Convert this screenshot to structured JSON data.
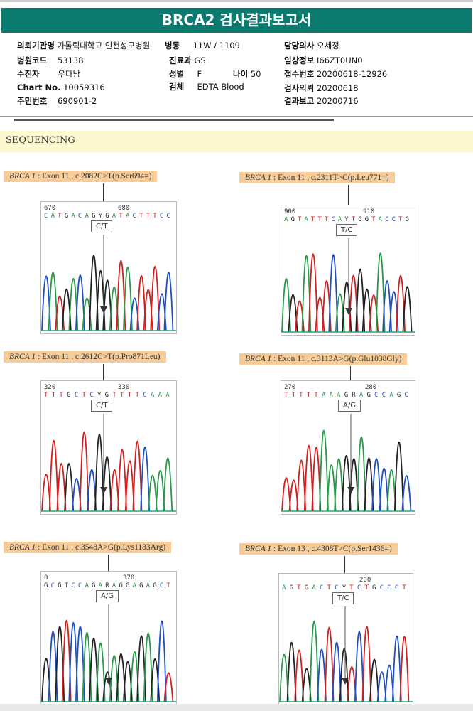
{
  "title": "BRCA2 검사결과보고서",
  "info": {
    "institution_label": "의뢰기관명",
    "institution": "가톨릭대학교 인천성모병원",
    "ward_label": "병동",
    "ward": "11W / 1109",
    "doctor_label": "담당의사",
    "doctor": "오세정",
    "hospital_code_label": "병원코드",
    "hospital_code": "53138",
    "dept_label": "진료과",
    "dept": "GS",
    "clinical_label": "임상정보",
    "clinical": "I66ZT0UN0",
    "patient_label": "수진자",
    "patient": "우다남",
    "sex_label": "성별",
    "sex": "F",
    "age_label": "나이",
    "age": "50",
    "receipt_label": "접수번호",
    "receipt": "20200618-12926",
    "chart_label": "Chart No.",
    "chart": "10059316",
    "specimen_label": "검체",
    "specimen": "EDTA Blood",
    "request_label": "검사의뢰",
    "request": "20200618",
    "id_label": "주민번호",
    "id": "690901-2",
    "report_label": "결과보고",
    "report": "20200716"
  },
  "section": "SEQUENCING",
  "panels": [
    {
      "gene": "BRCA 1",
      "desc": " : Exon 11 , c.2082C>T(p.Ser694=)",
      "pos1": "670",
      "pos2": "680",
      "seq": "CATGACAGYGATACTTTCC",
      "call": "C/T"
    },
    {
      "gene": "BRCA 1",
      "desc": " : Exon 11 , c.2311T>C(p.Leu771=)",
      "pos1": "900",
      "pos2": "910",
      "seq": "AGTATTTCAYTGGTACCTG",
      "call": "T/C"
    },
    {
      "gene": "BRCA 1",
      "desc": " : Exon 11 , c.2612C>T(p.Pro871Leu)",
      "pos1": "320",
      "pos2": "330",
      "seq": "TTTGCTCYGTTTTCAAA",
      "call": "C/T"
    },
    {
      "gene": "BRCA 1",
      "desc": " : Exon 11 , c.3113A>G(p.Glu1038Gly)",
      "pos1": "270",
      "pos2": "280",
      "seq": "TTTTTAAAGRAGCCAGC",
      "call": "A/G"
    },
    {
      "gene": "BRCA 1",
      "desc": " : Exon 11 , c.3548A>G(p.Lys1183Arg)",
      "pos1": "0",
      "pos2": "370",
      "seq": "GCGTCCAGARAGGAGAGCT",
      "call": "A/G"
    },
    {
      "gene": "BRCA 1",
      "desc": " : Exon 13 , c.4308T>C(p.Ser1436=)",
      "pos1": "",
      "pos2": "200",
      "seq": "AGTGACTCYTCTGCCCT",
      "call": "T/C"
    }
  ]
}
